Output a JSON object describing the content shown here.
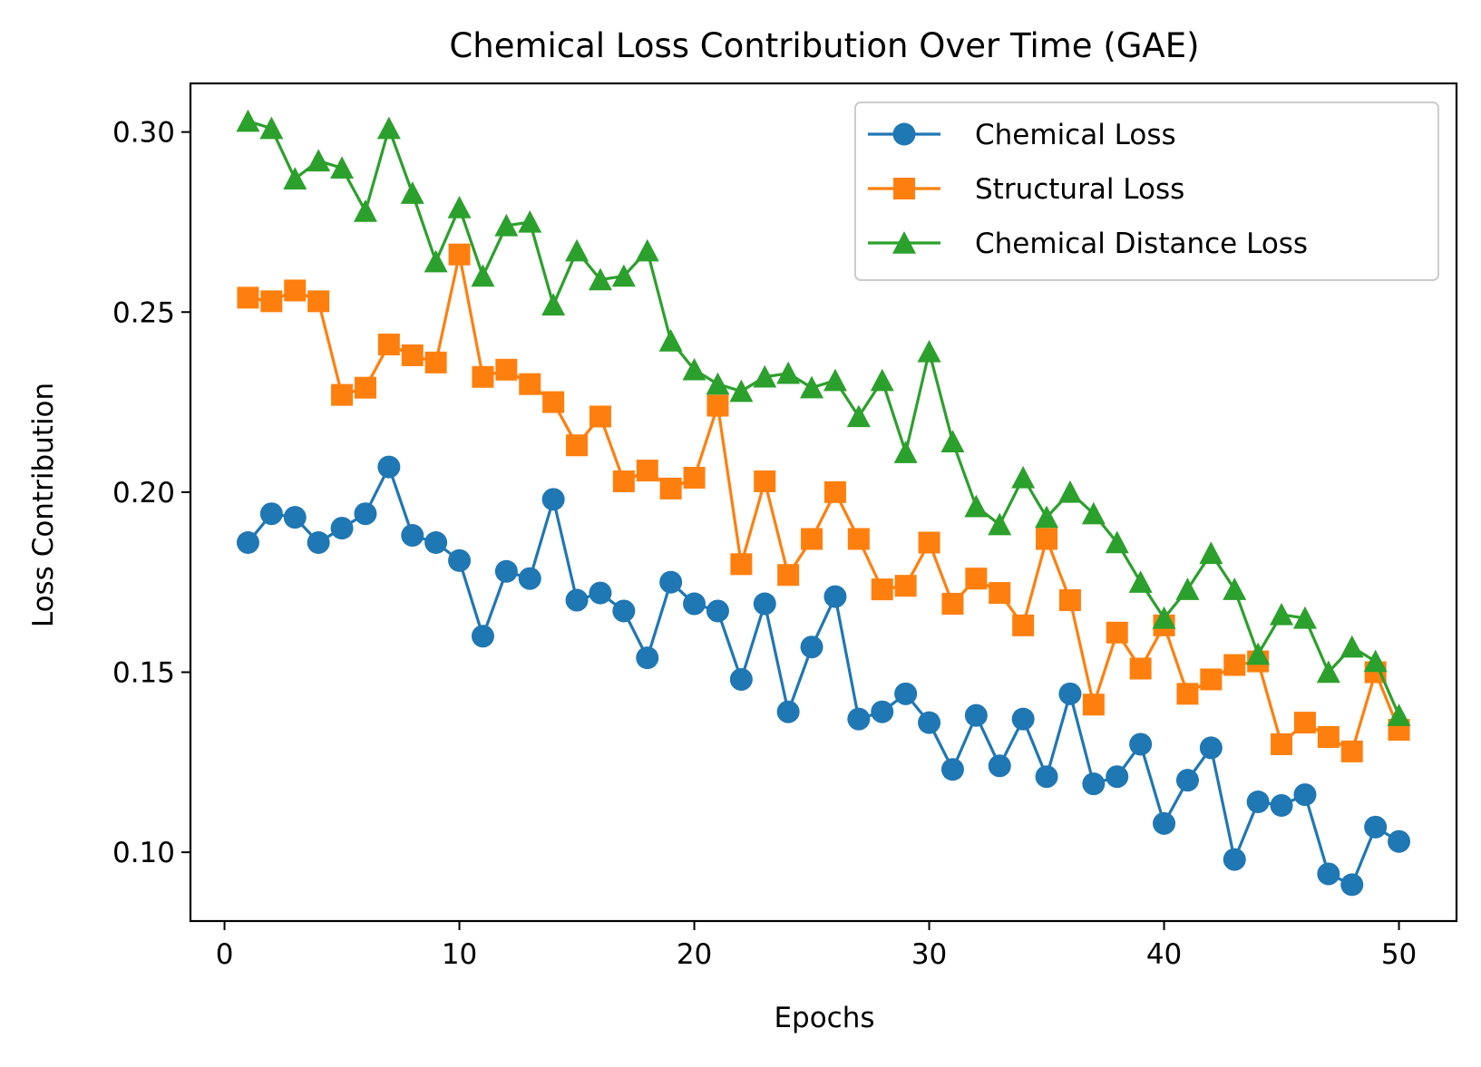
{
  "chart_data": {
    "type": "line",
    "title": "Chemical Loss Contribution Over Time (GAE)",
    "xlabel": "Epochs",
    "ylabel": "Loss Contribution",
    "xlim": [
      -1.45,
      52.45
    ],
    "ylim": [
      0.0809,
      0.3135
    ],
    "xticks": [
      0,
      10,
      20,
      30,
      40,
      50
    ],
    "yticks": [
      0.1,
      0.15,
      0.2,
      0.25,
      0.3
    ],
    "xtick_labels": [
      "0",
      "10",
      "20",
      "30",
      "40",
      "50"
    ],
    "ytick_labels": [
      "0.10",
      "0.15",
      "0.20",
      "0.25",
      "0.30"
    ],
    "grid": false,
    "legend_position": "top-right",
    "x": [
      1,
      2,
      3,
      4,
      5,
      6,
      7,
      8,
      9,
      10,
      11,
      12,
      13,
      14,
      15,
      16,
      17,
      18,
      19,
      20,
      21,
      22,
      23,
      24,
      25,
      26,
      27,
      28,
      29,
      30,
      31,
      32,
      33,
      34,
      35,
      36,
      37,
      38,
      39,
      40,
      41,
      42,
      43,
      44,
      45,
      46,
      47,
      48,
      49,
      50
    ],
    "series": [
      {
        "name": "Chemical Loss",
        "color": "#1f77b4",
        "marker": "circle",
        "values": [
          0.186,
          0.194,
          0.193,
          0.186,
          0.19,
          0.194,
          0.207,
          0.188,
          0.186,
          0.181,
          0.16,
          0.178,
          0.176,
          0.198,
          0.17,
          0.172,
          0.167,
          0.154,
          0.175,
          0.169,
          0.167,
          0.148,
          0.169,
          0.139,
          0.157,
          0.171,
          0.137,
          0.139,
          0.144,
          0.136,
          0.123,
          0.138,
          0.124,
          0.137,
          0.121,
          0.144,
          0.119,
          0.121,
          0.13,
          0.108,
          0.12,
          0.129,
          0.098,
          0.114,
          0.113,
          0.116,
          0.094,
          0.091,
          0.107,
          0.103
        ]
      },
      {
        "name": "Structural Loss",
        "color": "#ff7f0e",
        "marker": "square",
        "values": [
          0.254,
          0.253,
          0.256,
          0.253,
          0.227,
          0.229,
          0.241,
          0.238,
          0.236,
          0.266,
          0.232,
          0.234,
          0.23,
          0.225,
          0.213,
          0.221,
          0.203,
          0.206,
          0.201,
          0.204,
          0.224,
          0.18,
          0.203,
          0.177,
          0.187,
          0.2,
          0.187,
          0.173,
          0.174,
          0.186,
          0.169,
          0.176,
          0.172,
          0.163,
          0.187,
          0.17,
          0.141,
          0.161,
          0.151,
          0.163,
          0.144,
          0.148,
          0.152,
          0.153,
          0.13,
          0.136,
          0.132,
          0.128,
          0.15,
          0.134
        ]
      },
      {
        "name": "Chemical Distance Loss",
        "color": "#2ca02c",
        "marker": "triangle",
        "values": [
          0.303,
          0.301,
          0.287,
          0.292,
          0.29,
          0.278,
          0.301,
          0.283,
          0.264,
          0.279,
          0.26,
          0.274,
          0.275,
          0.252,
          0.267,
          0.259,
          0.26,
          0.267,
          0.242,
          0.234,
          0.23,
          0.228,
          0.232,
          0.233,
          0.229,
          0.231,
          0.221,
          0.231,
          0.211,
          0.239,
          0.214,
          0.196,
          0.191,
          0.204,
          0.193,
          0.2,
          0.194,
          0.186,
          0.175,
          0.165,
          0.173,
          0.183,
          0.173,
          0.155,
          0.166,
          0.165,
          0.15,
          0.157,
          0.153,
          0.138
        ]
      }
    ]
  }
}
